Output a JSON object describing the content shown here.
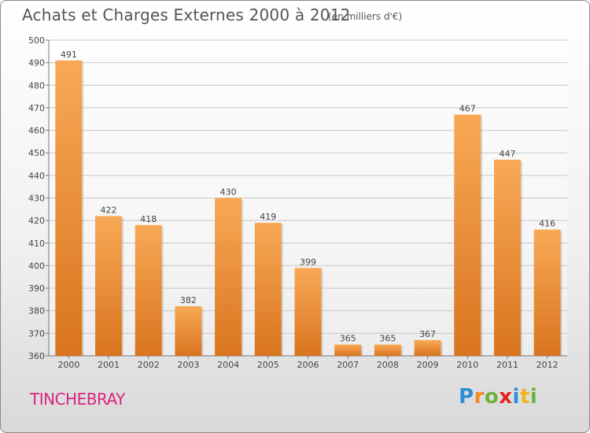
{
  "title": "Achats et Charges Externes 2000 à 2012",
  "subtitle": "(en milliers d'€)",
  "city": "TINCHEBRAY",
  "logo": {
    "letters": [
      {
        "char": "P",
        "color": "#2a8fd6"
      },
      {
        "char": "r",
        "color": "#f28c1e"
      },
      {
        "char": "o",
        "color": "#6cb33e"
      },
      {
        "char": "x",
        "color": "#e2231a"
      },
      {
        "char": "i",
        "color": "#2a8fd6"
      },
      {
        "char": "t",
        "color": "#f2b21e"
      },
      {
        "char": "i",
        "color": "#6cb33e"
      }
    ]
  },
  "colors": {
    "bar_top": "#f8a955",
    "bar_bottom": "#d9741f",
    "grid": "#c8c8c8",
    "text": "#444444"
  },
  "chart_data": {
    "type": "bar",
    "categories": [
      "2000",
      "2001",
      "2002",
      "2003",
      "2004",
      "2005",
      "2006",
      "2007",
      "2008",
      "2009",
      "2010",
      "2011",
      "2012"
    ],
    "values": [
      491,
      422,
      418,
      382,
      430,
      419,
      399,
      365,
      365,
      367,
      467,
      447,
      416
    ],
    "ylim": [
      360,
      500
    ],
    "yticks": [
      360,
      370,
      380,
      390,
      400,
      410,
      420,
      430,
      440,
      450,
      460,
      470,
      480,
      490,
      500
    ],
    "grid": true,
    "xlabel": "",
    "ylabel": ""
  }
}
